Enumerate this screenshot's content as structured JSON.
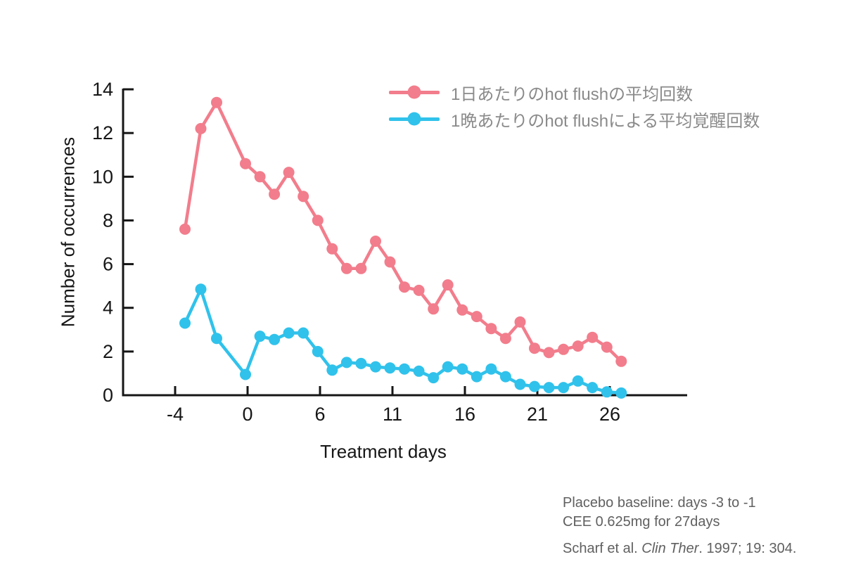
{
  "chart_data": {
    "type": "line",
    "xlabel": "Treatment days",
    "ylabel": "Number of occurrences",
    "ylim": [
      0,
      14
    ],
    "grid": false,
    "legend_position": "top-right-inside",
    "y_ticks": [
      0,
      2,
      4,
      6,
      8,
      10,
      12,
      14
    ],
    "x_ticks": [
      "-4",
      "0",
      "6",
      "11",
      "16",
      "21",
      "26"
    ],
    "days": [
      -3,
      -2,
      -1,
      1,
      2,
      3,
      4,
      5,
      6,
      7,
      8,
      9,
      10,
      11,
      12,
      13,
      14,
      15,
      16,
      17,
      18,
      19,
      20,
      21,
      22,
      23,
      24,
      25,
      26,
      27
    ],
    "series": [
      {
        "name": "1日あたりのhot flushの平均回数",
        "color": "#F27D8C",
        "marker": "circle",
        "values": [
          7.6,
          12.2,
          13.4,
          10.6,
          10.0,
          9.2,
          10.2,
          9.1,
          8.0,
          6.7,
          5.8,
          5.8,
          7.05,
          6.1,
          4.95,
          4.8,
          3.95,
          5.05,
          3.9,
          3.6,
          3.05,
          2.6,
          3.35,
          2.15,
          1.95,
          2.1,
          2.25,
          2.65,
          2.2,
          1.55
        ]
      },
      {
        "name": "1晩あたりのhot flushによる平均覚醒回数",
        "color": "#30C2EB",
        "marker": "circle",
        "values": [
          3.3,
          4.85,
          2.6,
          0.95,
          2.7,
          2.55,
          2.85,
          2.85,
          2.0,
          1.15,
          1.5,
          1.45,
          1.3,
          1.25,
          1.2,
          1.1,
          0.8,
          1.3,
          1.2,
          0.85,
          1.2,
          0.85,
          0.5,
          0.4,
          0.35,
          0.35,
          0.65,
          0.35,
          0.15,
          0.1
        ]
      }
    ]
  },
  "notes": {
    "line1": "Placebo baseline: days -3 to -1",
    "line2": "CEE 0.625mg for 27days",
    "ref_authors": "Scharf et al. ",
    "ref_journal": "Clin Ther",
    "ref_tail": ". 1997; 19: 304."
  }
}
